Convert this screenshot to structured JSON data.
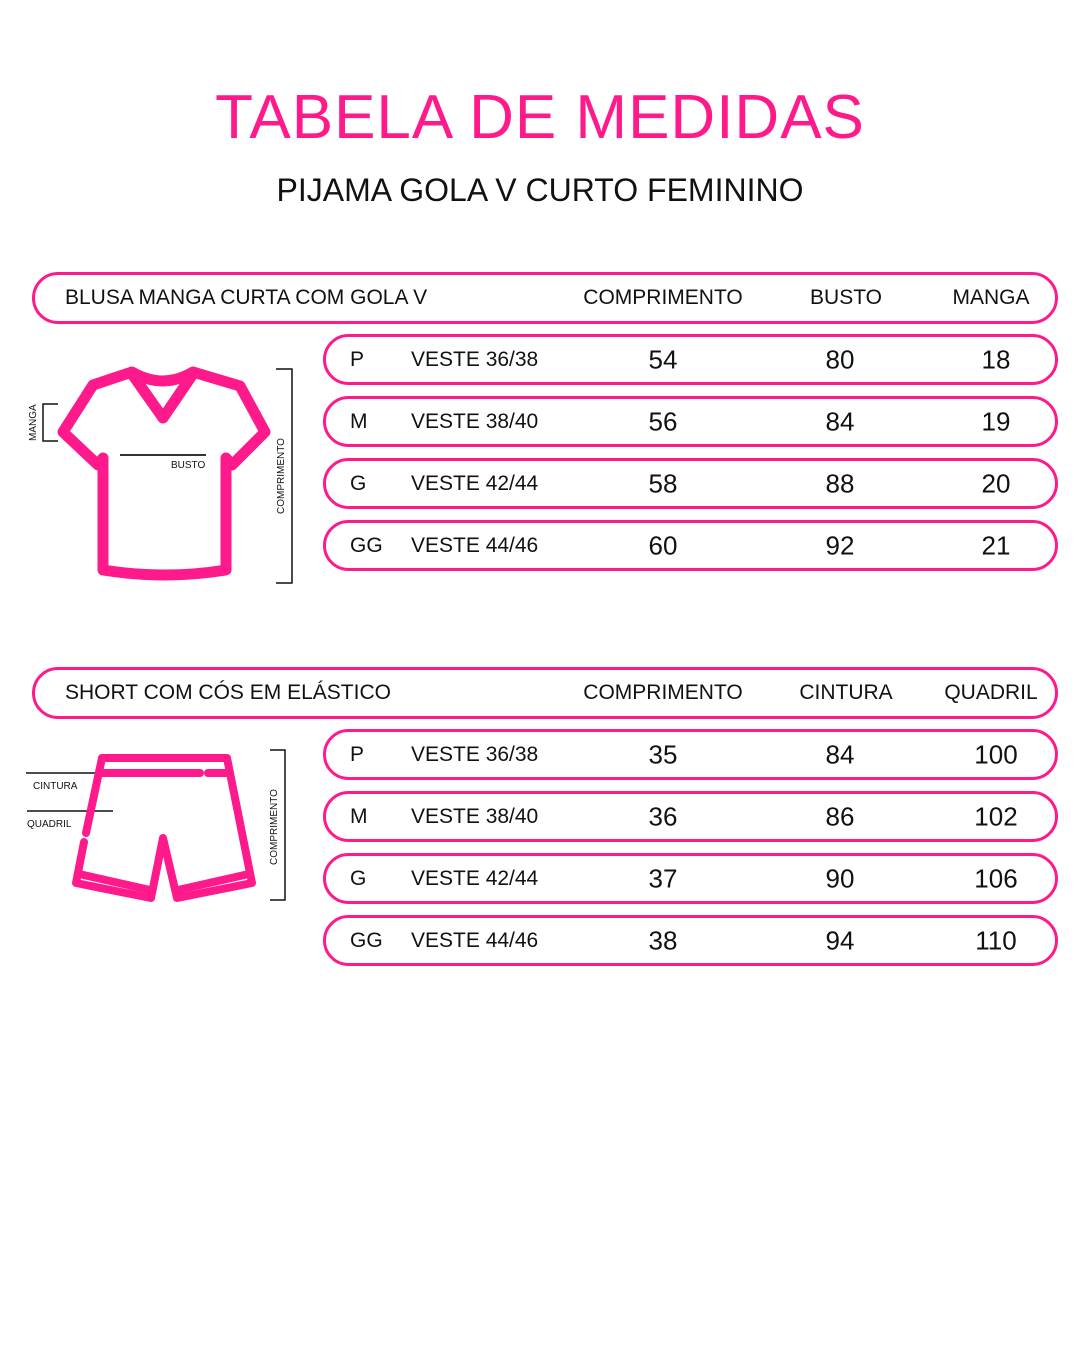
{
  "title": "TABELA DE MEDIDAS",
  "subtitle": "PIJAMA GOLA V CURTO FEMININO",
  "accent_color": "#ff1a8c",
  "tables": [
    {
      "name": "BLUSA MANGA CURTA COM GOLA V",
      "columns": [
        "COMPRIMENTO",
        "BUSTO",
        "MANGA"
      ],
      "diagram": {
        "icon": "tshirt-icon",
        "labels": {
          "manga": "MANGA",
          "busto": "BUSTO",
          "comprimento": "COMPRIMENTO"
        }
      },
      "rows": [
        {
          "size": "P",
          "veste": "VESTE 36/38",
          "values": [
            "54",
            "80",
            "18"
          ]
        },
        {
          "size": "M",
          "veste": "VESTE 38/40",
          "values": [
            "56",
            "84",
            "19"
          ]
        },
        {
          "size": "G",
          "veste": "VESTE 42/44",
          "values": [
            "58",
            "88",
            "20"
          ]
        },
        {
          "size": "GG",
          "veste": "VESTE 44/46",
          "values": [
            "60",
            "92",
            "21"
          ]
        }
      ]
    },
    {
      "name": "SHORT COM CÓS EM ELÁSTICO",
      "columns": [
        "COMPRIMENTO",
        "CINTURA",
        "QUADRIL"
      ],
      "diagram": {
        "icon": "shorts-icon",
        "labels": {
          "cintura": "CINTURA",
          "quadril": "QUADRIL",
          "comprimento": "COMPRIMENTO"
        }
      },
      "rows": [
        {
          "size": "P",
          "veste": "VESTE 36/38",
          "values": [
            "35",
            "84",
            "100"
          ]
        },
        {
          "size": "M",
          "veste": "VESTE 38/40",
          "values": [
            "36",
            "86",
            "102"
          ]
        },
        {
          "size": "G",
          "veste": "VESTE 42/44",
          "values": [
            "37",
            "90",
            "106"
          ]
        },
        {
          "size": "GG",
          "veste": "VESTE 44/46",
          "values": [
            "38",
            "94",
            "110"
          ]
        }
      ]
    }
  ]
}
